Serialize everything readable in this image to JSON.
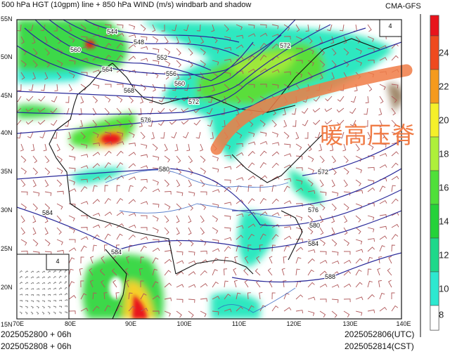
{
  "header": {
    "title": "500 hPa HGT (10gpm) line + 850 hPa WIND (m/s) windbarb and shadow",
    "model": "CMA-GFS"
  },
  "map": {
    "latitude_labels": [
      "55N",
      "50N",
      "45N",
      "40N",
      "35N",
      "30N",
      "25N",
      "20N",
      "15N"
    ],
    "longitude_labels": [
      "70E",
      "80E",
      "90E",
      "100E",
      "110E",
      "120E",
      "130E",
      "140E"
    ],
    "contour_labels": [
      "544",
      "548",
      "552",
      "556",
      "560",
      "564",
      "568",
      "572",
      "576",
      "580",
      "584",
      "588"
    ],
    "contour_color": "#2a2a9a",
    "inset_panel_label": "4",
    "corner_panel_label": "4",
    "annotation": "暖高压脊",
    "annotation_color": "#f07b45"
  },
  "colorbar": {
    "labels": [
      "24",
      "22",
      "20",
      "18",
      "16",
      "14",
      "12",
      "10",
      "8"
    ],
    "colors": [
      "#e8141c",
      "#ef4a1e",
      "#f59a1d",
      "#f5f02a",
      "#aef03a",
      "#4fe03a",
      "#25d23a",
      "#1ed88a",
      "#2ee8d0",
      "#ffffff"
    ]
  },
  "footer": {
    "init_utc": "2025052800 + 06h",
    "init_cst": "2025052808 + 06h",
    "valid_utc": "2025052806(UTC)",
    "valid_cst": "2025052814(CST)"
  }
}
